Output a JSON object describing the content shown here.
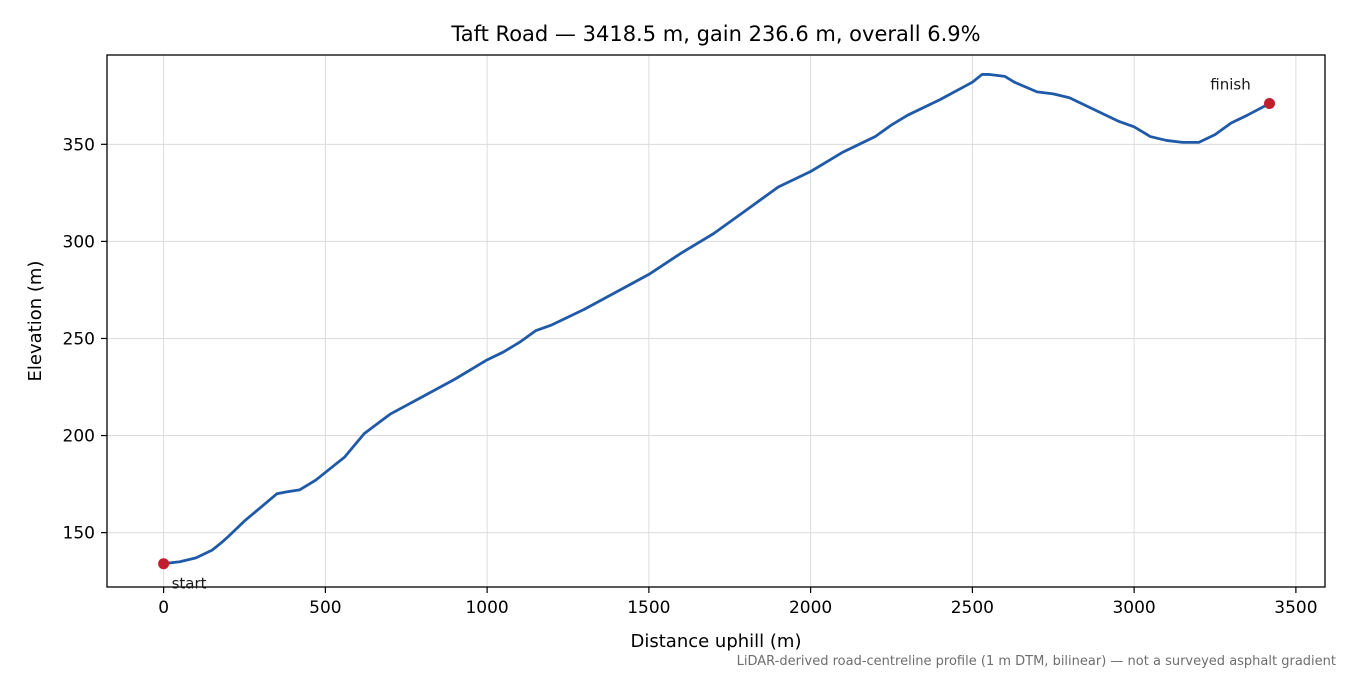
{
  "chart_data": {
    "type": "line",
    "title": "Taft Road — 3418.5 m, gain 236.6 m, overall 6.9%",
    "xlabel": "Distance uphill (m)",
    "ylabel": "Elevation (m)",
    "xlim": [
      -175,
      3590
    ],
    "ylim": [
      122,
      396
    ],
    "xticks": [
      0,
      500,
      1000,
      1500,
      2000,
      2500,
      3000,
      3500
    ],
    "yticks": [
      150,
      200,
      250,
      300,
      350
    ],
    "grid": true,
    "legend": "none",
    "line_color": "#1f5aa8",
    "marker_color": "#c01f2e",
    "series": [
      {
        "x": [
          0,
          50,
          100,
          150,
          180,
          200,
          250,
          300,
          350,
          380,
          420,
          470,
          500,
          530,
          560,
          590,
          620,
          700,
          800,
          900,
          1000,
          1050,
          1100,
          1150,
          1200,
          1250,
          1300,
          1400,
          1500,
          1600,
          1700,
          1800,
          1900,
          2000,
          2050,
          2100,
          2150,
          2200,
          2250,
          2300,
          2400,
          2500,
          2530,
          2550,
          2600,
          2630,
          2700,
          2750,
          2800,
          2900,
          2950,
          3000,
          3050,
          3100,
          3150,
          3200,
          3250,
          3300,
          3350,
          3418.5
        ],
        "y": [
          134,
          135,
          137,
          141,
          145,
          148,
          156,
          163,
          170,
          171,
          172,
          177,
          181,
          185,
          189,
          195,
          201,
          211,
          220,
          229,
          239,
          243,
          248,
          254,
          257,
          261,
          265,
          274,
          283,
          294,
          304,
          316,
          328,
          336,
          341,
          346,
          350,
          354,
          360,
          365,
          373,
          382,
          386,
          386,
          385,
          382,
          377,
          376,
          374,
          366,
          362,
          359,
          354,
          352,
          351,
          351,
          355,
          361,
          365,
          371
        ]
      }
    ],
    "annotations": [
      {
        "text": "start",
        "x": 0,
        "y": 134
      },
      {
        "text": "finish",
        "x": 3418.5,
        "y": 371
      }
    ],
    "footnote": "LiDAR-derived road-centreline profile (1 m DTM, bilinear) — not a surveyed asphalt gradient"
  }
}
